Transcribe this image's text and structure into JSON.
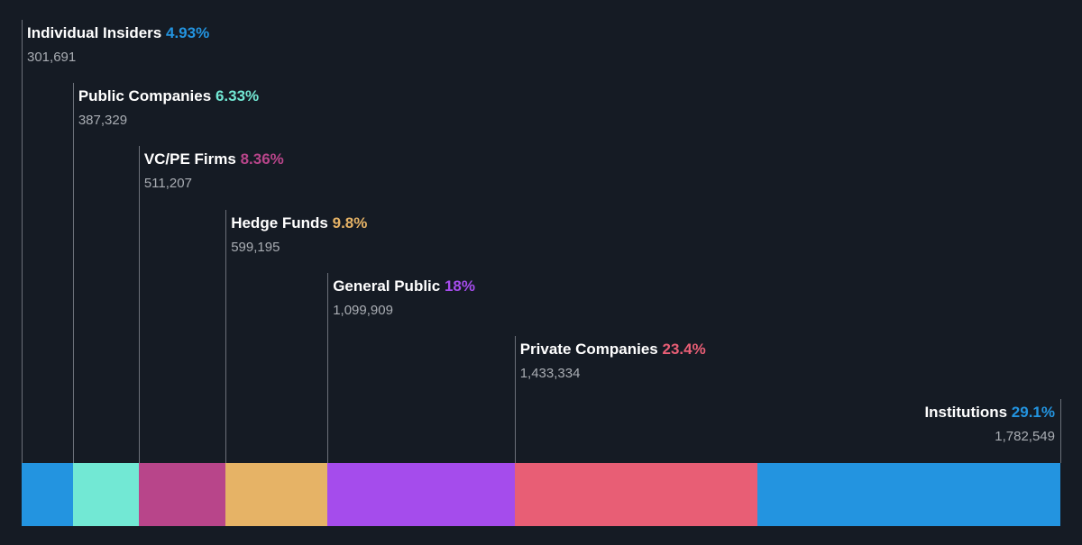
{
  "chart_data": {
    "type": "bar",
    "subtype": "stacked-horizontal-ownership",
    "series": [
      {
        "name": "Individual Insiders",
        "percent": 4.93,
        "percent_label": "4.93%",
        "shares": 301691,
        "shares_label": "301,691",
        "color": "#2394e0"
      },
      {
        "name": "Public Companies",
        "percent": 6.33,
        "percent_label": "6.33%",
        "shares": 387329,
        "shares_label": "387,329",
        "color": "#72e8d4"
      },
      {
        "name": "VC/PE Firms",
        "percent": 8.36,
        "percent_label": "8.36%",
        "shares": 511207,
        "shares_label": "511,207",
        "color": "#b8458a"
      },
      {
        "name": "Hedge Funds",
        "percent": 9.8,
        "percent_label": "9.8%",
        "shares": 599195,
        "shares_label": "599,195",
        "color": "#e6b366"
      },
      {
        "name": "General Public",
        "percent": 18,
        "percent_label": "18%",
        "shares": 1099909,
        "shares_label": "1,099,909",
        "color": "#a54cec"
      },
      {
        "name": "Private Companies",
        "percent": 23.4,
        "percent_label": "23.4%",
        "shares": 1433334,
        "shares_label": "1,433,334",
        "color": "#e85e75"
      },
      {
        "name": "Institutions",
        "percent": 29.1,
        "percent_label": "29.1%",
        "shares": 1782549,
        "shares_label": "1,782,549",
        "color": "#2394e0"
      }
    ],
    "title": "",
    "xlabel": "",
    "ylabel": "",
    "grid": false,
    "legend": "inline-labels",
    "background": "#151b24"
  }
}
